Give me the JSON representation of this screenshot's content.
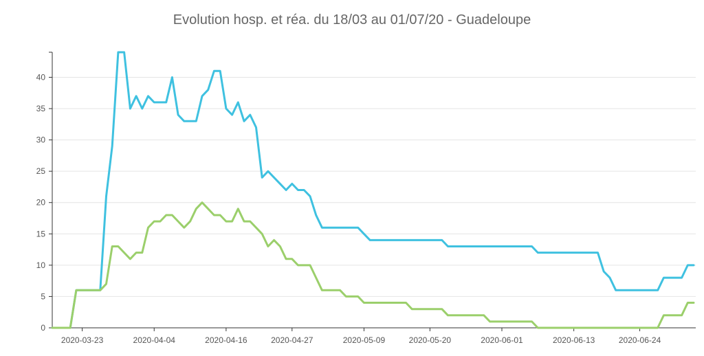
{
  "chart_data": {
    "type": "line",
    "title": "Evolution hosp. et réa. du 18/03 au 01/07/20 - Guadeloupe",
    "x_start": "2020-03-18",
    "x_ticks": [
      "2020-03-23",
      "2020-04-04",
      "2020-04-16",
      "2020-04-27",
      "2020-05-09",
      "2020-05-20",
      "2020-06-01",
      "2020-06-13",
      "2020-06-24"
    ],
    "y_ticks": [
      0,
      5,
      10,
      15,
      20,
      25,
      30,
      35,
      40
    ],
    "ylim": [
      0,
      44
    ],
    "grid": true,
    "series": [
      {
        "color": "#3fc1e0",
        "values": [
          0,
          0,
          0,
          0,
          6,
          6,
          6,
          6,
          6,
          21,
          29,
          44,
          44,
          35,
          37,
          35,
          37,
          36,
          36,
          36,
          40,
          34,
          33,
          33,
          33,
          37,
          38,
          41,
          41,
          35,
          34,
          36,
          33,
          34,
          32,
          24,
          25,
          24,
          23,
          22,
          23,
          22,
          22,
          21,
          18,
          16,
          16,
          16,
          16,
          16,
          16,
          16,
          15,
          14,
          14,
          14,
          14,
          14,
          14,
          14,
          14,
          14,
          14,
          14,
          14,
          14,
          13,
          13,
          13,
          13,
          13,
          13,
          13,
          13,
          13,
          13,
          13,
          13,
          13,
          13,
          13,
          12,
          12,
          12,
          12,
          12,
          12,
          12,
          12,
          12,
          12,
          12,
          9,
          8,
          6,
          6,
          6,
          6,
          6,
          6,
          6,
          6,
          8,
          8,
          8,
          8,
          10,
          10
        ]
      },
      {
        "color": "#9bcf6b",
        "values": [
          0,
          0,
          0,
          0,
          6,
          6,
          6,
          6,
          6,
          7,
          13,
          13,
          12,
          11,
          12,
          12,
          16,
          17,
          17,
          18,
          18,
          17,
          16,
          17,
          19,
          20,
          19,
          18,
          18,
          17,
          17,
          19,
          17,
          17,
          16,
          15,
          13,
          14,
          13,
          11,
          11,
          10,
          10,
          10,
          8,
          6,
          6,
          6,
          6,
          5,
          5,
          5,
          4,
          4,
          4,
          4,
          4,
          4,
          4,
          4,
          3,
          3,
          3,
          3,
          3,
          3,
          2,
          2,
          2,
          2,
          2,
          2,
          2,
          1,
          1,
          1,
          1,
          1,
          1,
          1,
          1,
          0,
          0,
          0,
          0,
          0,
          0,
          0,
          0,
          0,
          0,
          0,
          0,
          0,
          0,
          0,
          0,
          0,
          0,
          0,
          0,
          0,
          2,
          2,
          2,
          2,
          4,
          4
        ]
      }
    ]
  }
}
